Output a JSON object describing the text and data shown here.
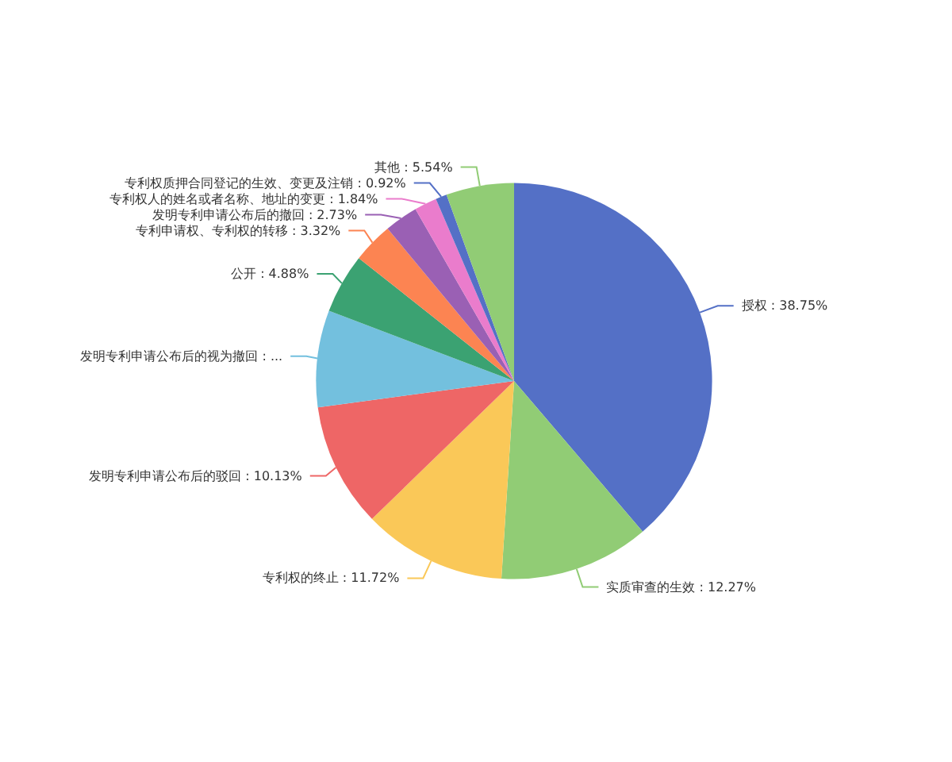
{
  "chart_data": {
    "type": "pie",
    "categories": [
      "授权",
      "实质审查的生效",
      "专利权的终止",
      "发明专利申请公布后的驳回",
      "发明专利申请公布后的视为撤回",
      "公开",
      "专利申请权、专利权的转移",
      "发明专利申请公布后的撤回",
      "专利权人的姓名或者名称、地址的变更",
      "专利权质押合同登记的生效、变更及注销",
      "其他"
    ],
    "values": [
      38.75,
      12.27,
      11.72,
      10.13,
      7.9,
      4.88,
      3.32,
      2.73,
      1.84,
      0.92,
      5.54
    ],
    "value_labels": [
      "38.75%",
      "12.27%",
      "11.72%",
      "10.13%",
      "...",
      "4.88%",
      "3.32%",
      "2.73%",
      "1.84%",
      "0.92%",
      "5.54%"
    ],
    "colors": [
      "#5470c6",
      "#91cc75",
      "#fac858",
      "#ee6666",
      "#73c0de",
      "#3ba272",
      "#fc8452",
      "#9a60b4",
      "#ea7ccc",
      "#5470c6",
      "#91cc75"
    ],
    "legend": false
  }
}
